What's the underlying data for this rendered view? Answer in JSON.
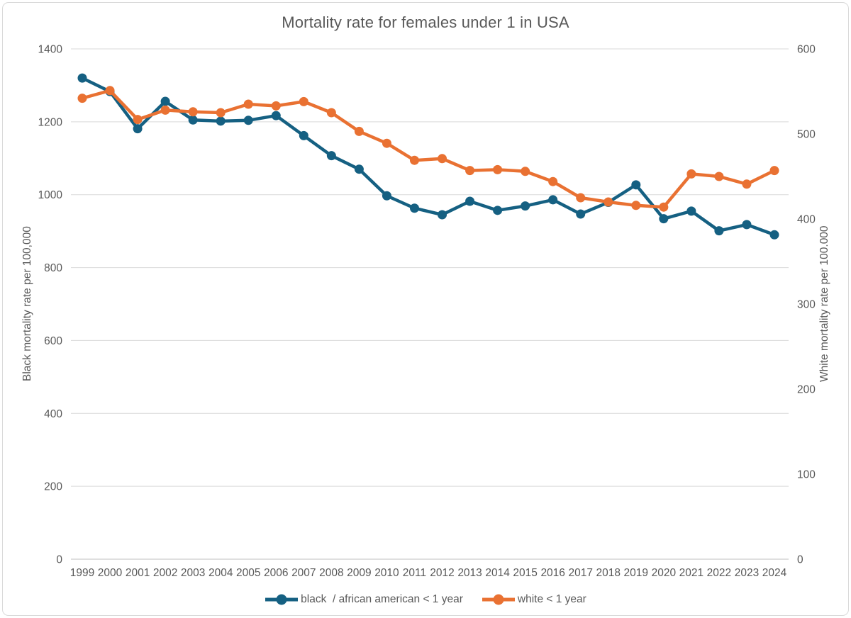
{
  "chart_data": {
    "type": "line",
    "title": "Mortality rate for females under 1 in USA",
    "x": [
      1999,
      2000,
      2001,
      2002,
      2003,
      2004,
      2005,
      2006,
      2007,
      2008,
      2009,
      2010,
      2011,
      2012,
      2013,
      2014,
      2015,
      2016,
      2017,
      2018,
      2019,
      2020,
      2021,
      2022,
      2023,
      2024
    ],
    "series": [
      {
        "name": "black  / african american < 1 year",
        "axis": "left",
        "color": "#156082",
        "values": [
          1320,
          1283,
          1181,
          1256,
          1205,
          1202,
          1204,
          1217,
          1162,
          1107,
          1070,
          997,
          963,
          945,
          982,
          957,
          969,
          986,
          947,
          979,
          1027,
          934,
          955,
          901,
          918,
          890
        ]
      },
      {
        "name": "white < 1 year",
        "axis": "right",
        "color": "#E97132",
        "values": [
          542,
          551,
          517,
          528,
          526,
          525,
          535,
          533,
          538,
          525,
          503,
          489,
          469,
          471,
          457,
          458,
          456,
          444,
          425,
          420,
          416,
          414,
          453,
          450,
          441,
          457
        ]
      }
    ],
    "axes": {
      "left": {
        "label": "Black mortality rate per 100,000",
        "min": 0,
        "max": 1400,
        "ticks": [
          0,
          200,
          400,
          600,
          800,
          1000,
          1200,
          1400
        ]
      },
      "right": {
        "label": "White mortality rate per 100.000",
        "min": 0,
        "max": 600,
        "ticks": [
          0,
          100,
          200,
          300,
          400,
          500,
          600
        ]
      }
    },
    "grid": "horizontal",
    "legend_position": "bottom",
    "colors": {
      "axis_text": "#595959",
      "title_text": "#595959",
      "gridline": "#D9D9D9",
      "baseline": "#BFBFBF",
      "background": "#FFFFFF",
      "border": "#D9D9D9"
    }
  }
}
